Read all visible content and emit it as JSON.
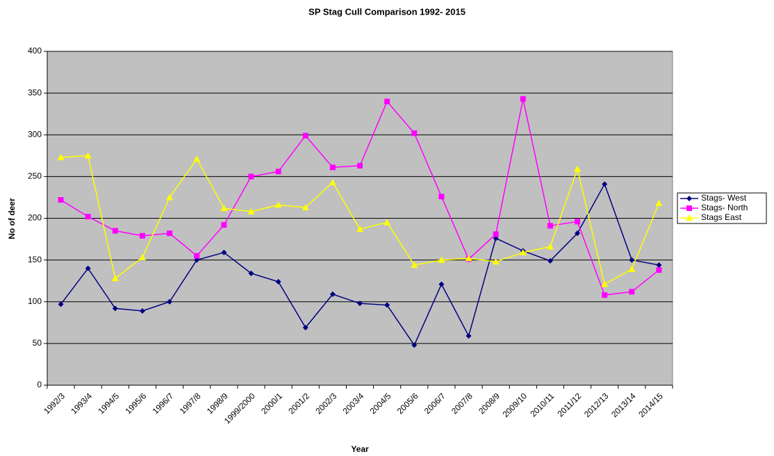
{
  "chart_data": {
    "type": "line",
    "title": "SP Stag Cull Comparison 1992- 2015",
    "x_label": "Year",
    "y_label": "No of deer",
    "categories": [
      "1992/3",
      "1993/4",
      "1994/5",
      "1995/6",
      "1996/7",
      "1997/8",
      "1998/9",
      "1999/2000",
      "2000/1",
      "2001/2",
      "2002/3",
      "2003/4",
      "2004/5",
      "2005/6",
      "2006/7",
      "2007/8",
      "2008/9",
      "2009/10",
      "2010/11",
      "2011/12",
      "2012/13",
      "2013/14",
      "2014/15"
    ],
    "series": [
      {
        "name": "Stags- West",
        "color": "#000080",
        "marker": "diamond",
        "values": [
          97,
          140,
          92,
          89,
          100,
          150,
          159,
          134,
          124,
          69,
          109,
          98,
          96,
          48,
          121,
          59,
          176,
          161,
          149,
          182,
          241,
          150,
          144
        ]
      },
      {
        "name": "Stags- North",
        "color": "#ff00ff",
        "marker": "square",
        "values": [
          222,
          202,
          185,
          179,
          182,
          155,
          192,
          250,
          256,
          299,
          261,
          263,
          340,
          302,
          226,
          151,
          181,
          343,
          191,
          196,
          108,
          112,
          138
        ]
      },
      {
        "name": "Stags East",
        "color": "#ffff00",
        "marker": "triangle",
        "values": [
          273,
          275,
          128,
          153,
          225,
          271,
          212,
          208,
          216,
          213,
          243,
          187,
          195,
          144,
          150,
          152,
          148,
          159,
          166,
          259,
          121,
          139,
          218
        ]
      }
    ],
    "ylim": [
      0,
      400
    ],
    "yticks": [
      0,
      50,
      100,
      150,
      200,
      250,
      300,
      350,
      400
    ],
    "grid": true,
    "legend": "right"
  }
}
